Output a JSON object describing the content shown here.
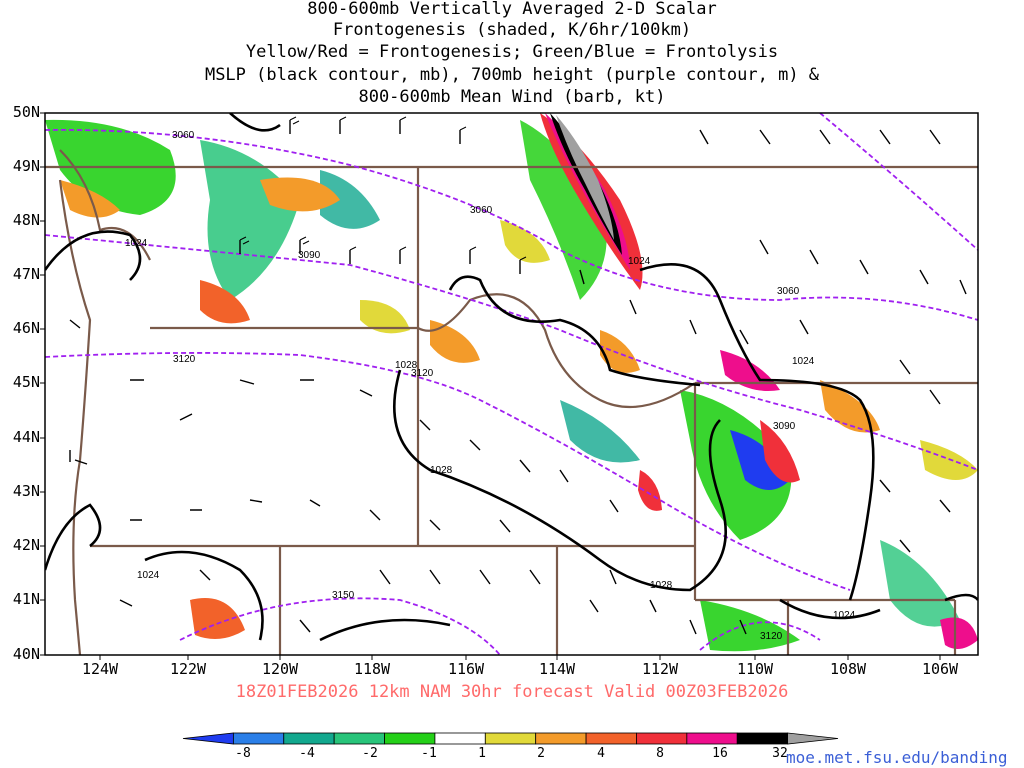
{
  "title_lines": [
    "800-600mb Vertically Averaged 2-D Scalar",
    "Frontogenesis (shaded, K/6hr/100km)",
    "Yellow/Red = Frontogenesis;  Green/Blue = Frontolysis",
    "MSLP (black contour, mb), 700mb height (purple contour, m) &",
    "800-600mb Mean Wind (barb, kt)"
  ],
  "lat_labels": [
    "50N",
    "49N",
    "48N",
    "47N",
    "46N",
    "45N",
    "44N",
    "43N",
    "42N",
    "41N",
    "40N"
  ],
  "lon_labels": [
    "124W",
    "122W",
    "120W",
    "118W",
    "116W",
    "114W",
    "112W",
    "110W",
    "108W",
    "106W"
  ],
  "valid_text": "18Z01FEB2026 12km NAM 30hr forecast Valid 00Z03FEB2026",
  "colorbar": {
    "labels": [
      "-8",
      "-4",
      "-2",
      "-1",
      "1",
      "2",
      "4",
      "8",
      "16",
      "32"
    ],
    "colors": [
      "#1f3cf0",
      "#2b7fe8",
      "#12a88e",
      "#28c47a",
      "#24d018",
      "#ffffff",
      "#e1d93a",
      "#f39b2a",
      "#f2622a",
      "#f0303a",
      "#ee0e8c",
      "#000000",
      "#a0a0a0"
    ]
  },
  "contours": {
    "mslp_labels": [
      "1024",
      "1028",
      "1024",
      "1028",
      "1024",
      "1028",
      "1024",
      "1024"
    ],
    "height_labels": [
      "3060",
      "3060",
      "3090",
      "3060",
      "3120",
      "3120",
      "3090",
      "3150",
      "3120"
    ]
  },
  "credit": "moe.met.fsu.edu/banding"
}
